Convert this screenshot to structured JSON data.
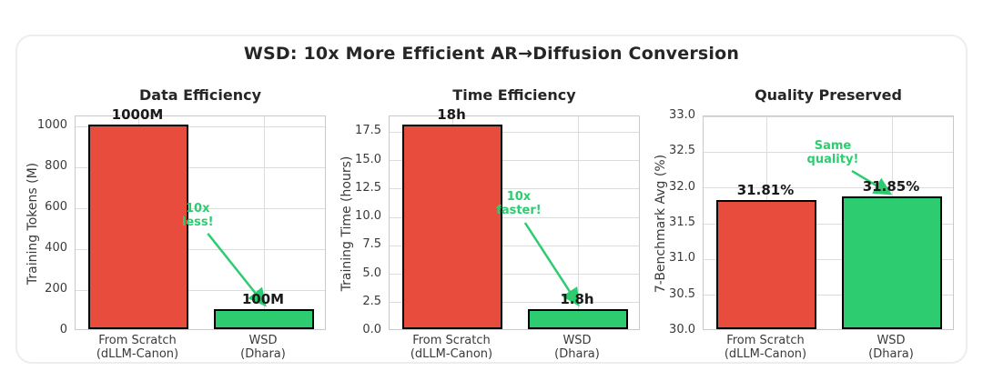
{
  "title": "WSD: 10x More Efficient AR→Diffusion Conversion",
  "colors": {
    "red": "#e74c3c",
    "green": "#2ecc71",
    "annotation": "#2ecc71",
    "grid": "#dcdcdc",
    "spine": "#c9c9c9",
    "tick_text": "#3a3a3a",
    "title_text": "#262626",
    "bar_edge": "#000000",
    "bar_label_text": "#1a1a1a",
    "card_border": "#ededed",
    "background": "#ffffff"
  },
  "chart_data": [
    {
      "type": "bar",
      "title": "Data Efficiency",
      "ylabel": "Training Tokens (M)",
      "categories": [
        [
          "From Scratch",
          "(dLLM-Canon)"
        ],
        [
          "WSD",
          "(Dhara)"
        ]
      ],
      "values": [
        1000,
        100
      ],
      "bar_labels": [
        "1000M",
        "100M"
      ],
      "bar_colors": [
        "#e74c3c",
        "#2ecc71"
      ],
      "ylim": [
        0,
        1050
      ],
      "yticks": [
        0,
        200,
        400,
        600,
        800,
        1000
      ],
      "ytick_labels": [
        "0",
        "200",
        "400",
        "600",
        "800",
        "1000"
      ],
      "grid": true,
      "annotation": {
        "lines": [
          "10x",
          "less!"
        ],
        "text_center": [
          0.49,
          0.466
        ],
        "arrow_from": [
          0.53,
          0.55
        ],
        "arrow_to": [
          0.752,
          0.875
        ]
      }
    },
    {
      "type": "bar",
      "title": "Time Efficiency",
      "ylabel": "Training Time (hours)",
      "categories": [
        [
          "From Scratch",
          "(dLLM-Canon)"
        ],
        [
          "WSD",
          "(Dhara)"
        ]
      ],
      "values": [
        18,
        1.8
      ],
      "bar_labels": [
        "18h",
        "1.8h"
      ],
      "bar_colors": [
        "#e74c3c",
        "#2ecc71"
      ],
      "ylim": [
        0,
        18.9
      ],
      "yticks": [
        0,
        2.5,
        5,
        7.5,
        10,
        12.5,
        15,
        17.5
      ],
      "ytick_labels": [
        "0.0",
        "2.5",
        "5.0",
        "7.5",
        "10.0",
        "12.5",
        "15.0",
        "17.5"
      ],
      "grid": true,
      "annotation": {
        "lines": [
          "10x",
          "faster!"
        ],
        "text_center": [
          0.518,
          0.411
        ],
        "arrow_from": [
          0.543,
          0.5
        ],
        "arrow_to": [
          0.75,
          0.873
        ]
      }
    },
    {
      "type": "bar",
      "title": "Quality Preserved",
      "ylabel": "7-Benchmark Avg (%)",
      "categories": [
        [
          "From Scratch",
          "(dLLM-Canon)"
        ],
        [
          "WSD",
          "(Dhara)"
        ]
      ],
      "values": [
        31.81,
        31.85
      ],
      "bar_labels": [
        "31.81%",
        "31.85%"
      ],
      "bar_colors": [
        "#e74c3c",
        "#2ecc71"
      ],
      "ylim": [
        30,
        33
      ],
      "yticks": [
        30,
        30.5,
        31,
        31.5,
        32,
        32.5,
        33
      ],
      "ytick_labels": [
        "30.0",
        "30.5",
        "31.0",
        "31.5",
        "32.0",
        "32.5",
        "33.0"
      ],
      "grid": true,
      "annotation": {
        "lines": [
          "Same",
          "quality!"
        ],
        "text_center": [
          0.518,
          0.174
        ],
        "arrow_from": [
          0.594,
          0.258
        ],
        "arrow_to": [
          0.739,
          0.36
        ]
      }
    }
  ]
}
